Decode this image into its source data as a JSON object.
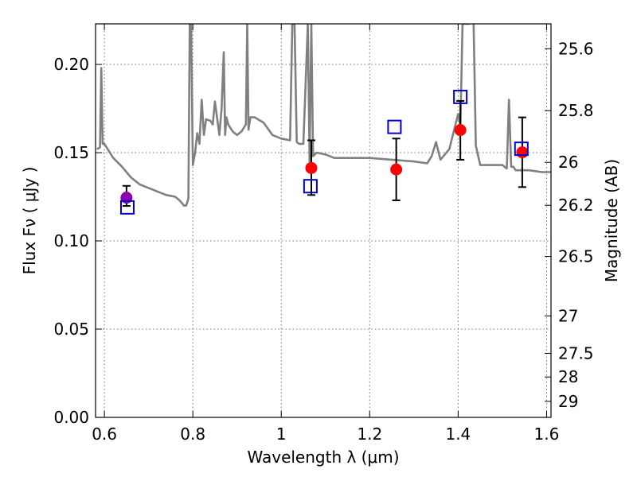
{
  "chart_data": {
    "type": "scatter",
    "xlabel": "Wavelength  λ (μm)",
    "ylabel": "Flux  Fν  ( μJy )",
    "y2label": "Magnitude (AB)",
    "xlim": [
      0.58,
      1.61
    ],
    "ylim": [
      0.0,
      0.223
    ],
    "grid": true,
    "x_ticks": [
      0.6,
      0.8,
      1.0,
      1.2,
      1.4,
      1.6
    ],
    "x_tick_labels": [
      "0.6",
      "0.8",
      "1",
      "1.2",
      "1.4",
      "1.6"
    ],
    "y_ticks": [
      0.0,
      0.05,
      0.1,
      0.15,
      0.2
    ],
    "y_tick_labels": [
      "0.00",
      "0.05",
      "0.10",
      "0.15",
      "0.20"
    ],
    "y2_ticks": [
      {
        "label": "25.6",
        "flux": 0.2089
      },
      {
        "label": "25.8",
        "flux": 0.1738
      },
      {
        "label": "26",
        "flux": 0.1445
      },
      {
        "label": "26.2",
        "flux": 0.1202
      },
      {
        "label": "26.5",
        "flux": 0.0912
      },
      {
        "label": "27",
        "flux": 0.0575
      },
      {
        "label": "27.5",
        "flux": 0.0363
      },
      {
        "label": "28",
        "flux": 0.0229
      },
      {
        "label": "29",
        "flux": 0.0091
      }
    ],
    "series": [
      {
        "type": "line",
        "color": "#808080",
        "x": [
          0.583,
          0.59,
          0.593,
          0.596,
          0.6,
          0.61,
          0.62,
          0.64,
          0.66,
          0.68,
          0.7,
          0.72,
          0.74,
          0.76,
          0.77,
          0.78,
          0.785,
          0.79,
          0.793,
          0.796,
          0.8,
          0.805,
          0.81,
          0.815,
          0.82,
          0.825,
          0.83,
          0.84,
          0.845,
          0.85,
          0.86,
          0.865,
          0.87,
          0.873,
          0.876,
          0.88,
          0.89,
          0.9,
          0.91,
          0.92,
          0.923,
          0.926,
          0.93,
          0.94,
          0.96,
          0.98,
          1.0,
          1.02,
          1.025,
          1.03,
          1.035,
          1.04,
          1.05,
          1.06,
          1.064,
          1.068,
          1.072,
          1.08,
          1.1,
          1.12,
          1.15,
          1.2,
          1.25,
          1.3,
          1.33,
          1.34,
          1.35,
          1.36,
          1.38,
          1.39,
          1.4,
          1.405,
          1.41,
          1.415,
          1.42,
          1.425,
          1.43,
          1.435,
          1.44,
          1.45,
          1.5,
          1.51,
          1.515,
          1.52,
          1.525,
          1.53,
          1.56,
          1.59,
          1.61
        ],
        "y": [
          0.152,
          0.153,
          0.198,
          0.155,
          0.155,
          0.151,
          0.147,
          0.142,
          0.136,
          0.132,
          0.13,
          0.128,
          0.126,
          0.125,
          0.123,
          0.12,
          0.12,
          0.124,
          0.223,
          0.223,
          0.143,
          0.15,
          0.161,
          0.155,
          0.18,
          0.16,
          0.169,
          0.168,
          0.166,
          0.179,
          0.16,
          0.175,
          0.207,
          0.16,
          0.17,
          0.166,
          0.162,
          0.16,
          0.162,
          0.166,
          0.223,
          0.163,
          0.17,
          0.17,
          0.167,
          0.16,
          0.158,
          0.157,
          0.223,
          0.223,
          0.156,
          0.155,
          0.155,
          0.223,
          0.145,
          0.223,
          0.148,
          0.15,
          0.149,
          0.147,
          0.147,
          0.147,
          0.146,
          0.145,
          0.144,
          0.148,
          0.156,
          0.146,
          0.152,
          0.162,
          0.172,
          0.165,
          0.223,
          0.223,
          0.223,
          0.223,
          0.23,
          0.223,
          0.154,
          0.143,
          0.143,
          0.141,
          0.18,
          0.142,
          0.142,
          0.14,
          0.14,
          0.139,
          0.139
        ]
      },
      {
        "type": "errorbar",
        "color": "#000000",
        "x": [
          0.65,
          1.068,
          1.26,
          1.405,
          1.545
        ],
        "y": [
          0.1245,
          0.1413,
          0.1405,
          0.1628,
          0.1502
        ],
        "yerr_low": [
          0.0047,
          0.0153,
          0.0175,
          0.0168,
          0.0197
        ],
        "yerr_high": [
          0.0067,
          0.0157,
          0.0175,
          0.0165,
          0.0198
        ]
      },
      {
        "type": "points",
        "marker": "circle",
        "color": "#8b00b0",
        "x": [
          0.65
        ],
        "y": [
          0.1245
        ]
      },
      {
        "type": "points",
        "marker": "circle",
        "color": "#ff0000",
        "x": [
          1.068,
          1.26,
          1.405,
          1.545
        ],
        "y": [
          0.1413,
          0.1405,
          0.1628,
          0.1502
        ]
      },
      {
        "type": "points",
        "marker": "square-open",
        "color": "#0000cc",
        "x": [
          0.652,
          1.066,
          1.256,
          1.405,
          1.543
        ],
        "y": [
          0.119,
          0.131,
          0.1646,
          0.1816,
          0.1522
        ]
      }
    ]
  }
}
